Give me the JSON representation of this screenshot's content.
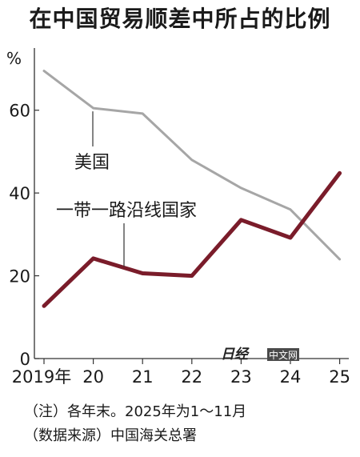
{
  "title": "在中国贸易顺差中所占的比例",
  "notes": [
    "（注）各年末。2025年为1～11月",
    "（数据来源）中国海关总署"
  ],
  "watermark": {
    "logo_text": "日经",
    "label": "中文网"
  },
  "chart_data": {
    "type": "line",
    "title": "在中国贸易顺差中所占的比例",
    "ylabel": "%",
    "ylim": [
      0,
      70
    ],
    "yticks": [
      "0",
      "20",
      "40",
      "60"
    ],
    "x": [
      "2019年",
      "20",
      "21",
      "22",
      "23",
      "24",
      "25"
    ],
    "grid": false,
    "series": [
      {
        "name": "美国",
        "color": "#a6a6a6",
        "values": [
          69.5,
          60.5,
          59.2,
          48.0,
          41.2,
          36.0,
          24.0
        ]
      },
      {
        "name": "一带一路沿线国家",
        "color": "#7a1c2a",
        "values": [
          12.7,
          24.2,
          20.6,
          20.0,
          33.5,
          29.2,
          44.8
        ]
      }
    ]
  }
}
